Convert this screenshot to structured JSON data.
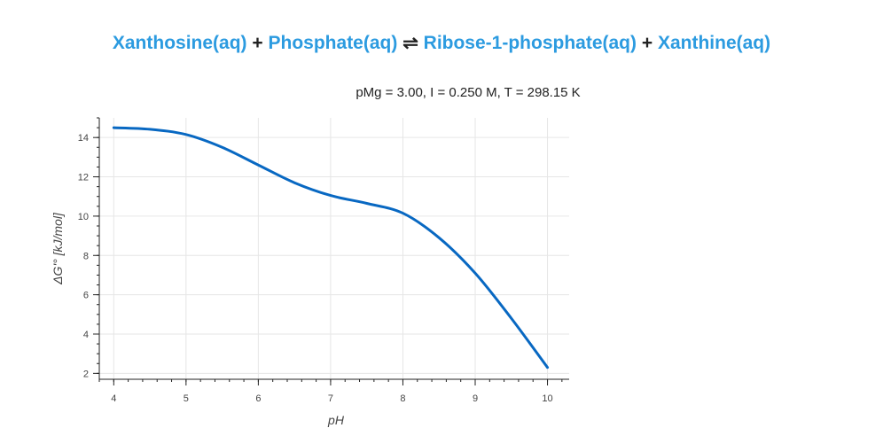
{
  "title": {
    "reactant_1": "Xanthosine(aq)",
    "plus_1": "+",
    "reactant_2": "Phosphate(aq)",
    "arrow": "⇌",
    "product_1": "Ribose-1-phosphate(aq)",
    "plus_2": "+",
    "product_2": "Xanthine(aq)"
  },
  "subtitle": "pMg = 3.00, I = 0.250 M, T = 298.15 K",
  "colors": {
    "species": "#2c9be0",
    "line": "#0868c2",
    "grid": "#e6e6e6",
    "axis": "#222222"
  },
  "chart_data": {
    "type": "line",
    "title": "Xanthosine(aq) + Phosphate(aq) ⇌ Ribose-1-phosphate(aq) + Xanthine(aq)",
    "subtitle": "pMg = 3.00, I = 0.250 M, T = 298.15 K",
    "xlabel": "pH",
    "ylabel": "ΔG'° [kJ/mol]",
    "xlim": [
      3.8,
      10.3
    ],
    "ylim": [
      1.7,
      15.0
    ],
    "xticks": [
      4,
      5,
      6,
      7,
      8,
      9,
      10
    ],
    "yticks": [
      2,
      4,
      6,
      8,
      10,
      12,
      14
    ],
    "grid": true,
    "series": [
      {
        "x": [
          4.0,
          4.5,
          5.0,
          5.5,
          6.0,
          6.5,
          7.0,
          7.5,
          8.0,
          8.5,
          9.0,
          9.5,
          10.0
        ],
        "y": [
          14.5,
          14.42,
          14.15,
          13.5,
          12.6,
          11.7,
          11.05,
          10.65,
          10.15,
          8.9,
          7.1,
          4.8,
          2.3
        ]
      }
    ]
  }
}
